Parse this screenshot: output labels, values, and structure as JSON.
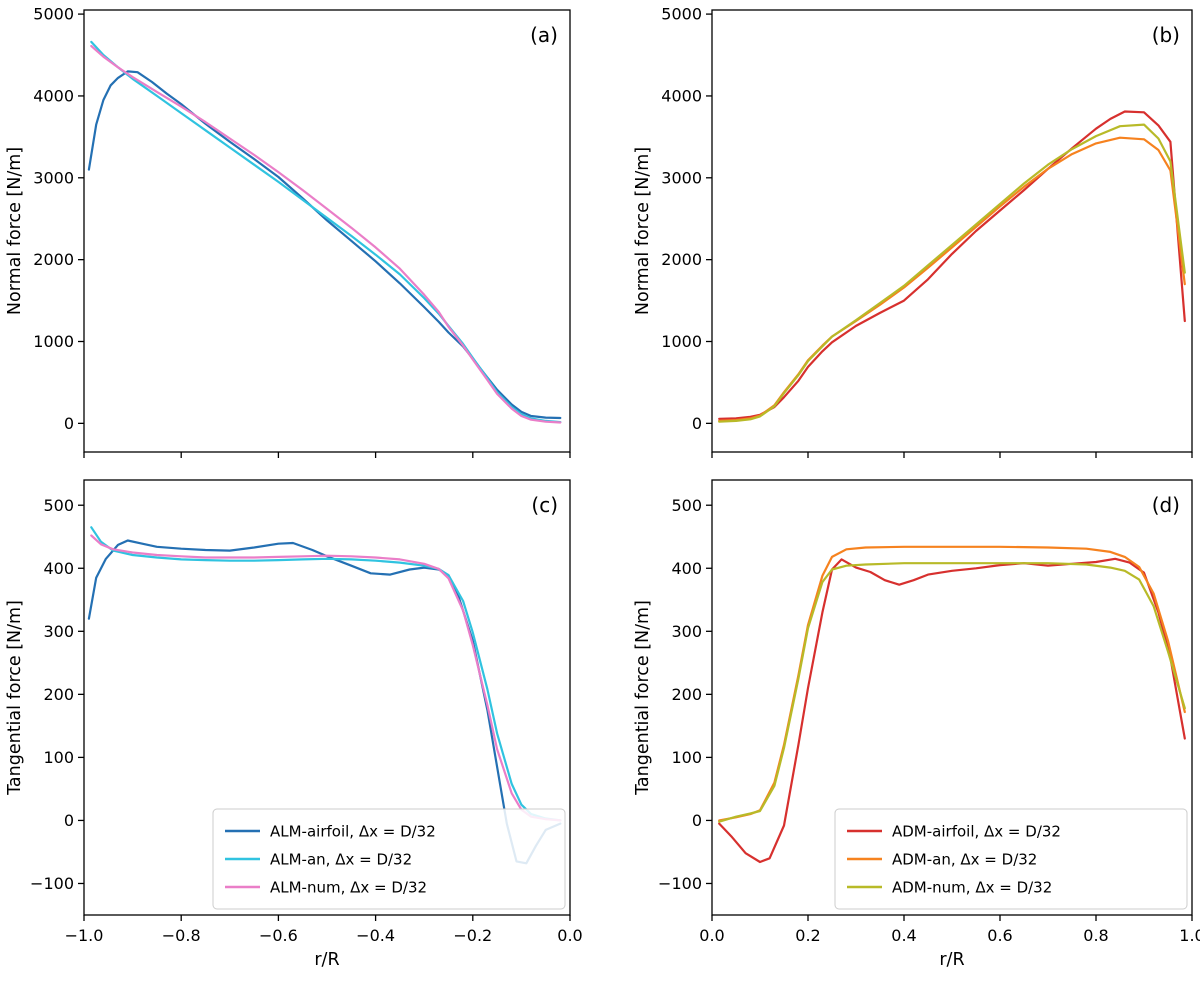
{
  "figure": {
    "background": "#ffffff"
  },
  "chart_data": [
    {
      "id": "a",
      "type": "line",
      "panel_label": "(a)",
      "ylabel": "Normal force [N/m]",
      "xlabel": "",
      "xlim": [
        -1.0,
        0.0
      ],
      "ylim": [
        -350,
        5050
      ],
      "xticks": [
        -1.0,
        -0.8,
        -0.6,
        -0.4,
        -0.2,
        0.0
      ],
      "xticklabels": [],
      "yticks": [
        0,
        1000,
        2000,
        3000,
        4000,
        5000
      ],
      "yticklabels": [
        "0",
        "1000",
        "2000",
        "3000",
        "4000",
        "5000"
      ],
      "legend": false,
      "series": [
        {
          "name": "ALM-airfoil, Δx =  D/32",
          "color": "#2470b3",
          "x": [
            -0.99,
            -0.975,
            -0.96,
            -0.945,
            -0.93,
            -0.91,
            -0.89,
            -0.86,
            -0.83,
            -0.8,
            -0.75,
            -0.7,
            -0.65,
            -0.6,
            -0.55,
            -0.5,
            -0.45,
            -0.4,
            -0.35,
            -0.3,
            -0.27,
            -0.25,
            -0.22,
            -0.2,
            -0.17,
            -0.15,
            -0.12,
            -0.1,
            -0.08,
            -0.05,
            -0.02
          ],
          "y": [
            3100,
            3650,
            3950,
            4130,
            4220,
            4300,
            4290,
            4170,
            4030,
            3900,
            3660,
            3440,
            3230,
            3010,
            2750,
            2480,
            2230,
            1980,
            1710,
            1420,
            1240,
            1110,
            940,
            790,
            560,
            410,
            230,
            140,
            90,
            70,
            65
          ]
        },
        {
          "name": "ALM-an, Δx =  D/32",
          "color": "#30c3e0",
          "x": [
            -0.985,
            -0.96,
            -0.93,
            -0.9,
            -0.85,
            -0.8,
            -0.75,
            -0.7,
            -0.65,
            -0.6,
            -0.55,
            -0.5,
            -0.45,
            -0.4,
            -0.35,
            -0.3,
            -0.27,
            -0.25,
            -0.22,
            -0.2,
            -0.17,
            -0.15,
            -0.12,
            -0.1,
            -0.08,
            -0.05,
            -0.02
          ],
          "y": [
            4660,
            4500,
            4350,
            4210,
            4000,
            3790,
            3580,
            3370,
            3160,
            2950,
            2730,
            2510,
            2290,
            2060,
            1820,
            1530,
            1340,
            1190,
            970,
            800,
            550,
            380,
            200,
            110,
            60,
            30,
            15
          ]
        },
        {
          "name": "ALM-num, Δx =  D/32",
          "color": "#ea7ec8",
          "x": [
            -0.985,
            -0.96,
            -0.93,
            -0.9,
            -0.85,
            -0.8,
            -0.75,
            -0.7,
            -0.65,
            -0.6,
            -0.55,
            -0.5,
            -0.45,
            -0.4,
            -0.35,
            -0.3,
            -0.27,
            -0.25,
            -0.22,
            -0.2,
            -0.17,
            -0.15,
            -0.12,
            -0.1,
            -0.08,
            -0.05,
            -0.02
          ],
          "y": [
            4610,
            4480,
            4350,
            4230,
            4050,
            3870,
            3680,
            3480,
            3280,
            3070,
            2850,
            2620,
            2390,
            2150,
            1890,
            1570,
            1360,
            1180,
            950,
            780,
            530,
            360,
            180,
            90,
            45,
            20,
            10
          ]
        }
      ]
    },
    {
      "id": "b",
      "type": "line",
      "panel_label": "(b)",
      "ylabel": "Normal force [N/m]",
      "xlabel": "",
      "xlim": [
        0.0,
        1.0
      ],
      "ylim": [
        -350,
        5050
      ],
      "xticks": [
        0.0,
        0.2,
        0.4,
        0.6,
        0.8,
        1.0
      ],
      "xticklabels": [],
      "yticks": [
        0,
        1000,
        2000,
        3000,
        4000,
        5000
      ],
      "yticklabels": [
        "0",
        "1000",
        "2000",
        "3000",
        "4000",
        "5000"
      ],
      "legend": false,
      "series": [
        {
          "name": "ADM-airfoil, Δx =  D/32",
          "color": "#d7302e",
          "x": [
            0.015,
            0.05,
            0.08,
            0.1,
            0.13,
            0.15,
            0.18,
            0.2,
            0.23,
            0.25,
            0.3,
            0.35,
            0.4,
            0.45,
            0.5,
            0.55,
            0.6,
            0.65,
            0.7,
            0.75,
            0.8,
            0.83,
            0.86,
            0.9,
            0.93,
            0.955,
            0.985
          ],
          "y": [
            55,
            60,
            80,
            105,
            200,
            320,
            520,
            690,
            880,
            990,
            1190,
            1350,
            1500,
            1760,
            2070,
            2350,
            2600,
            2850,
            3110,
            3360,
            3600,
            3720,
            3810,
            3800,
            3640,
            3440,
            1250
          ]
        },
        {
          "name": "ADM-an, Δx =  D/32",
          "color": "#f6821f",
          "x": [
            0.015,
            0.05,
            0.08,
            0.1,
            0.13,
            0.15,
            0.18,
            0.2,
            0.23,
            0.25,
            0.3,
            0.35,
            0.4,
            0.45,
            0.5,
            0.55,
            0.6,
            0.65,
            0.7,
            0.75,
            0.8,
            0.85,
            0.9,
            0.93,
            0.955,
            0.985
          ],
          "y": [
            30,
            40,
            60,
            95,
            220,
            380,
            600,
            770,
            950,
            1060,
            1250,
            1450,
            1660,
            1900,
            2150,
            2400,
            2650,
            2890,
            3110,
            3290,
            3420,
            3490,
            3470,
            3340,
            3090,
            1700
          ]
        },
        {
          "name": "ADM-num, Δx =  D/32",
          "color": "#b8ba28",
          "x": [
            0.015,
            0.05,
            0.08,
            0.1,
            0.13,
            0.15,
            0.18,
            0.2,
            0.23,
            0.25,
            0.3,
            0.35,
            0.4,
            0.45,
            0.5,
            0.55,
            0.6,
            0.65,
            0.7,
            0.75,
            0.8,
            0.85,
            0.9,
            0.93,
            0.955,
            0.985
          ],
          "y": [
            20,
            30,
            50,
            85,
            210,
            370,
            590,
            760,
            940,
            1060,
            1260,
            1470,
            1680,
            1930,
            2180,
            2430,
            2680,
            2930,
            3160,
            3350,
            3510,
            3630,
            3650,
            3480,
            3200,
            1840
          ]
        }
      ]
    },
    {
      "id": "c",
      "type": "line",
      "panel_label": "(c)",
      "ylabel": "Tangential force [N/m]",
      "xlabel": "r/R",
      "xlim": [
        -1.0,
        0.0
      ],
      "ylim": [
        -150,
        540
      ],
      "xticks": [
        -1.0,
        -0.8,
        -0.6,
        -0.4,
        -0.2,
        0.0
      ],
      "xticklabels": [
        "−1.0",
        "−0.8",
        "−0.6",
        "−0.4",
        "−0.2",
        "0.0"
      ],
      "yticks": [
        -100,
        0,
        100,
        200,
        300,
        400,
        500
      ],
      "yticklabels": [
        "−100",
        "0",
        "100",
        "200",
        "300",
        "400",
        "500"
      ],
      "legend": true,
      "series": [
        {
          "name": "ALM-airfoil, Δx =  D/32",
          "color": "#2470b3",
          "x": [
            -0.99,
            -0.975,
            -0.955,
            -0.93,
            -0.91,
            -0.88,
            -0.85,
            -0.8,
            -0.75,
            -0.7,
            -0.65,
            -0.6,
            -0.57,
            -0.53,
            -0.5,
            -0.45,
            -0.41,
            -0.37,
            -0.33,
            -0.3,
            -0.27,
            -0.25,
            -0.23,
            -0.2,
            -0.17,
            -0.15,
            -0.13,
            -0.11,
            -0.09,
            -0.07,
            -0.05,
            -0.02
          ],
          "y": [
            320,
            385,
            415,
            437,
            444,
            439,
            434,
            431,
            429,
            428,
            433,
            439,
            440,
            429,
            419,
            404,
            392,
            390,
            398,
            401,
            398,
            389,
            357,
            285,
            175,
            85,
            -5,
            -65,
            -68,
            -40,
            -15,
            -5
          ]
        },
        {
          "name": "ALM-an, Δx =  D/32",
          "color": "#30c3e0",
          "x": [
            -0.985,
            -0.965,
            -0.94,
            -0.9,
            -0.85,
            -0.8,
            -0.75,
            -0.7,
            -0.65,
            -0.6,
            -0.55,
            -0.5,
            -0.45,
            -0.4,
            -0.35,
            -0.3,
            -0.27,
            -0.25,
            -0.22,
            -0.2,
            -0.17,
            -0.15,
            -0.12,
            -0.1,
            -0.08,
            -0.05,
            -0.02
          ],
          "y": [
            465,
            442,
            428,
            421,
            417,
            414,
            413,
            412,
            412,
            413,
            414,
            415,
            414,
            412,
            409,
            404,
            399,
            389,
            348,
            298,
            208,
            138,
            58,
            25,
            10,
            3,
            0
          ]
        },
        {
          "name": "ALM-num, Δx =  D/32",
          "color": "#ea7ec8",
          "x": [
            -0.985,
            -0.965,
            -0.94,
            -0.9,
            -0.85,
            -0.8,
            -0.75,
            -0.7,
            -0.65,
            -0.6,
            -0.55,
            -0.5,
            -0.45,
            -0.4,
            -0.35,
            -0.3,
            -0.27,
            -0.25,
            -0.22,
            -0.2,
            -0.17,
            -0.15,
            -0.12,
            -0.1,
            -0.08,
            -0.05,
            -0.02
          ],
          "y": [
            452,
            438,
            430,
            425,
            421,
            419,
            417,
            417,
            417,
            418,
            419,
            420,
            419,
            417,
            414,
            407,
            399,
            384,
            333,
            278,
            183,
            113,
            43,
            17,
            6,
            2,
            0
          ]
        }
      ]
    },
    {
      "id": "d",
      "type": "line",
      "panel_label": "(d)",
      "ylabel": "Tangential force [N/m]",
      "xlabel": "r/R",
      "xlim": [
        0.0,
        1.0
      ],
      "ylim": [
        -150,
        540
      ],
      "xticks": [
        0.0,
        0.2,
        0.4,
        0.6,
        0.8,
        1.0
      ],
      "xticklabels": [
        "0.0",
        "0.2",
        "0.4",
        "0.6",
        "0.8",
        "1.0"
      ],
      "yticks": [
        -100,
        0,
        100,
        200,
        300,
        400,
        500
      ],
      "yticklabels": [
        "−100",
        "0",
        "100",
        "200",
        "300",
        "400",
        "500"
      ],
      "legend": true,
      "series": [
        {
          "name": "ADM-airfoil, Δx =  D/32",
          "color": "#d7302e",
          "x": [
            0.015,
            0.04,
            0.07,
            0.1,
            0.12,
            0.15,
            0.18,
            0.2,
            0.23,
            0.25,
            0.27,
            0.3,
            0.33,
            0.36,
            0.39,
            0.42,
            0.45,
            0.5,
            0.55,
            0.6,
            0.65,
            0.7,
            0.75,
            0.8,
            0.84,
            0.87,
            0.9,
            0.93,
            0.955,
            0.985
          ],
          "y": [
            -5,
            -25,
            -52,
            -66,
            -60,
            -8,
            120,
            210,
            330,
            398,
            414,
            401,
            394,
            381,
            374,
            381,
            390,
            396,
            400,
            405,
            408,
            404,
            407,
            410,
            415,
            409,
            393,
            330,
            258,
            130
          ]
        },
        {
          "name": "ADM-an, Δx =  D/32",
          "color": "#f6821f",
          "x": [
            0.015,
            0.05,
            0.08,
            0.1,
            0.13,
            0.15,
            0.18,
            0.2,
            0.23,
            0.25,
            0.28,
            0.32,
            0.4,
            0.5,
            0.6,
            0.7,
            0.78,
            0.83,
            0.86,
            0.89,
            0.92,
            0.95,
            0.985
          ],
          "y": [
            0,
            5,
            10,
            16,
            60,
            120,
            230,
            310,
            388,
            418,
            430,
            433,
            434,
            434,
            434,
            433,
            431,
            426,
            418,
            402,
            360,
            285,
            172
          ]
        },
        {
          "name": "ADM-num, Δx =  D/32",
          "color": "#b8ba28",
          "x": [
            0.015,
            0.05,
            0.08,
            0.1,
            0.13,
            0.15,
            0.18,
            0.2,
            0.23,
            0.25,
            0.28,
            0.32,
            0.4,
            0.5,
            0.6,
            0.7,
            0.78,
            0.83,
            0.86,
            0.89,
            0.92,
            0.95,
            0.985
          ],
          "y": [
            -2,
            6,
            11,
            15,
            55,
            115,
            225,
            305,
            378,
            398,
            404,
            406,
            408,
            408,
            408,
            408,
            406,
            401,
            396,
            382,
            340,
            268,
            178
          ]
        }
      ]
    }
  ]
}
